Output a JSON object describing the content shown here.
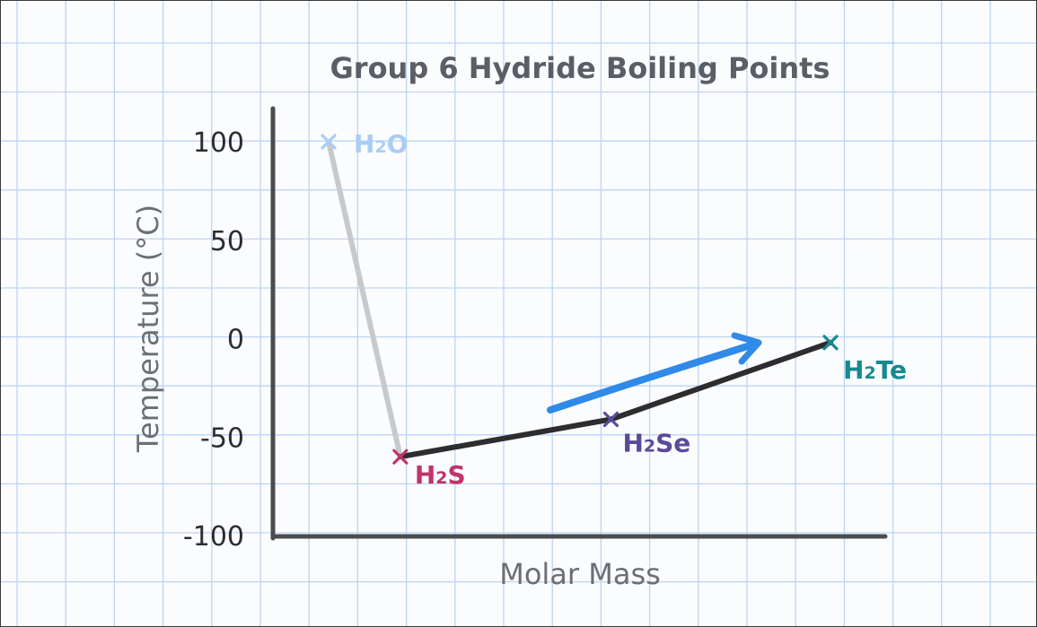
{
  "chart_data": {
    "type": "line",
    "title": "Group 6 Hydride Boiling Points",
    "xlabel": "Molar Mass",
    "ylabel": "Temperature (°C)",
    "ylim": [
      -100,
      100
    ],
    "yticks": [
      100,
      50,
      0,
      -50,
      -100
    ],
    "ytick_labels": [
      "100",
      "50",
      "0",
      "-50",
      "-100"
    ],
    "grid": true,
    "points": [
      {
        "name": "H2O",
        "label_main": "H",
        "label_sub": "2",
        "label_rest": "O",
        "molar_mass": 18,
        "boiling_point": 100,
        "color": "#a9cdf5"
      },
      {
        "name": "H2S",
        "label_main": "H",
        "label_sub": "2",
        "label_rest": "S",
        "molar_mass": 34,
        "boiling_point": -60,
        "color": "#c0336b"
      },
      {
        "name": "H2Se",
        "label_main": "H",
        "label_sub": "2",
        "label_rest": "Se",
        "molar_mass": 81,
        "boiling_point": -41,
        "color": "#5b4a9a"
      },
      {
        "name": "H2Te",
        "label_main": "H",
        "label_sub": "2",
        "label_rest": "Te",
        "molar_mass": 130,
        "boiling_point": -2,
        "color": "#17898f"
      }
    ],
    "segments": [
      {
        "from": "H2O",
        "to": "H2S",
        "color": "#c8c9cb"
      },
      {
        "from": "H2S",
        "to": "H2Se",
        "color": "#2d2d2f"
      },
      {
        "from": "H2Se",
        "to": "H2Te",
        "color": "#2d2d2f"
      }
    ],
    "trend_arrow_color": "#2f8ae8",
    "axis_color": "#4a4c50",
    "grid_color": "#bcd5f2"
  }
}
